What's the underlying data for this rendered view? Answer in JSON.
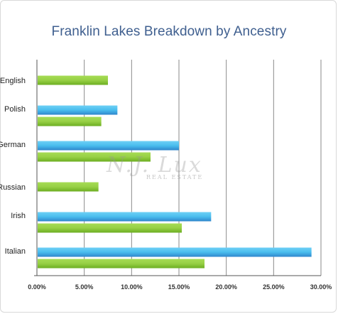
{
  "chart_data": {
    "type": "bar",
    "orientation": "horizontal",
    "title": "Franklin Lakes Breakdown by Ancestry",
    "categories": [
      "English",
      "Polish",
      "German",
      "Russian",
      "Irish",
      "Italian"
    ],
    "series": [
      {
        "color": "#3ea8e4",
        "values": [
          null,
          8.5,
          15.0,
          null,
          18.4,
          29.0
        ]
      },
      {
        "color": "#8cc63f",
        "values": [
          7.5,
          6.8,
          12.0,
          6.5,
          15.3,
          17.7
        ]
      }
    ],
    "xlim": [
      0,
      30
    ],
    "xticks": [
      "0.00%",
      "5.00%",
      "10.00%",
      "15.00%",
      "20.00%",
      "25.00%",
      "30.00%"
    ],
    "grid": true,
    "xlabel": "",
    "ylabel": ""
  },
  "watermark": {
    "script_text": "N.J. Lux",
    "sub_text": "REAL ESTATE"
  }
}
